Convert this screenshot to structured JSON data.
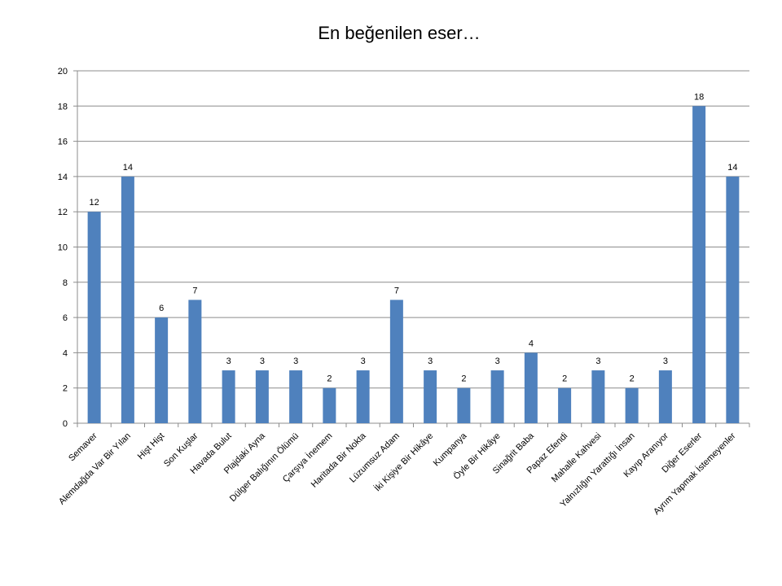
{
  "chart_data": {
    "type": "bar",
    "title": "En beğenilen eser…",
    "xlabel": "",
    "ylabel": "",
    "ylim": [
      0,
      20
    ],
    "yticks": [
      0,
      2,
      4,
      6,
      8,
      10,
      12,
      14,
      16,
      18,
      20
    ],
    "grid": true,
    "legend": "none",
    "bar_color": "#4F81BD",
    "categories": [
      "Semaver",
      "Alemdağda Var Bir Yılan",
      "Hişt Hişt",
      "Son Kuşlar",
      "Havada Bulut",
      "Plajdaki Ayna",
      "Dülger Balığının Ölümü",
      "Çarşıya İnemem",
      "Haritada Bir Nokta",
      "Lüzumsuz Adam",
      "İki Kişiye Bir Hikâye",
      "Kumpanya",
      "Öyle Bir Hikâye",
      "Sinağrit Baba",
      "Papaz Efendi",
      "Mahalle Kahvesi",
      "Yalnızlığın Yarattığı İnsan",
      "Kayıp Aranıyor",
      "Diğer Eserler",
      "Ayrım Yapmak İstemeyenler"
    ],
    "values": [
      12,
      14,
      6,
      7,
      3,
      3,
      3,
      2,
      3,
      7,
      3,
      2,
      3,
      4,
      2,
      3,
      2,
      3,
      18,
      14
    ]
  }
}
